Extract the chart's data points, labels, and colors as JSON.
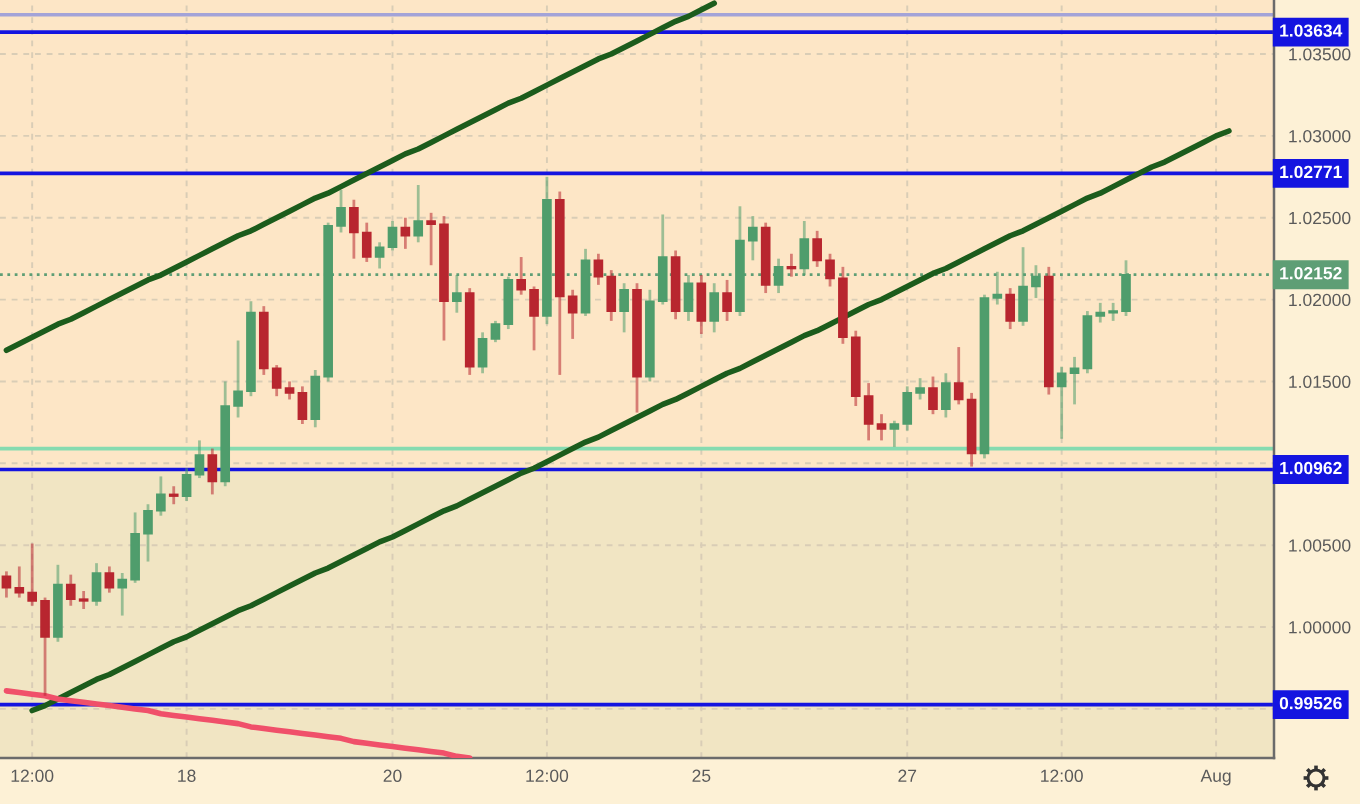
{
  "chart_data": {
    "type": "candlestick",
    "categories": [
      null,
      null,
      "12:00",
      null,
      null,
      null,
      null,
      null,
      null,
      null,
      null,
      null,
      null,
      null,
      "18",
      null,
      null,
      null,
      null,
      null,
      null,
      null,
      null,
      null,
      null,
      null,
      null,
      null,
      null,
      null,
      "20",
      null,
      null,
      null,
      null,
      null,
      null,
      null,
      null,
      null,
      null,
      null,
      "12:00",
      null,
      null,
      null,
      null,
      null,
      null,
      null,
      null,
      null,
      null,
      null,
      "25",
      null,
      null,
      null,
      null,
      null,
      null,
      null,
      null,
      null,
      null,
      null,
      null,
      null,
      null,
      null,
      "27",
      null,
      null,
      null,
      null,
      null,
      null,
      null,
      null,
      null,
      null,
      null,
      "12:00",
      null,
      null,
      null,
      null,
      null,
      null,
      null,
      null,
      null,
      null,
      null,
      "Aug",
      null,
      null,
      null,
      null
    ],
    "ohlc": [
      [
        1.0031,
        1.0034,
        1.0018,
        1.0024
      ],
      [
        1.0024,
        1.0037,
        1.0018,
        1.0021
      ],
      [
        1.0021,
        1.0051,
        1.0013,
        1.0016
      ],
      [
        1.0016,
        1.0018,
        0.9958,
        0.9994
      ],
      [
        0.9994,
        1.0038,
        0.9991,
        1.0026
      ],
      [
        1.0026,
        1.0032,
        1.0013,
        1.0017
      ],
      [
        1.0017,
        1.0022,
        1.0011,
        1.0016
      ],
      [
        1.0016,
        1.0039,
        1.0013,
        1.0033
      ],
      [
        1.0033,
        1.0037,
        1.0021,
        1.0024
      ],
      [
        1.0024,
        1.0033,
        1.0007,
        1.0029
      ],
      [
        1.0029,
        1.007,
        1.0027,
        1.0057
      ],
      [
        1.0057,
        1.0075,
        1.004,
        1.0071
      ],
      [
        1.0071,
        1.0092,
        1.0068,
        1.0081
      ],
      [
        1.0081,
        1.0086,
        1.0075,
        1.008
      ],
      [
        1.008,
        1.0097,
        1.0077,
        1.0093
      ],
      [
        1.0093,
        1.0114,
        1.0091,
        1.0105
      ],
      [
        1.0105,
        1.0109,
        1.0081,
        1.0089
      ],
      [
        1.0089,
        1.015,
        1.0086,
        1.0135
      ],
      [
        1.0135,
        1.0175,
        1.0128,
        1.0144
      ],
      [
        1.0144,
        1.0199,
        1.0141,
        1.0192
      ],
      [
        1.0192,
        1.0196,
        1.0154,
        1.0158
      ],
      [
        1.0158,
        1.016,
        1.0141,
        1.0146
      ],
      [
        1.0146,
        1.015,
        1.0139,
        1.0143
      ],
      [
        1.0143,
        1.0147,
        1.0124,
        1.0127
      ],
      [
        1.0127,
        1.0157,
        1.0122,
        1.0153
      ],
      [
        1.0153,
        1.0247,
        1.015,
        1.0245
      ],
      [
        1.0245,
        1.0267,
        1.0241,
        1.0256
      ],
      [
        1.0256,
        1.0261,
        1.0225,
        1.0241
      ],
      [
        1.0241,
        1.0247,
        1.0223,
        1.0226
      ],
      [
        1.0226,
        1.0235,
        1.0219,
        1.0232
      ],
      [
        1.0232,
        1.0248,
        1.023,
        1.0244
      ],
      [
        1.0244,
        1.025,
        1.0231,
        1.0239
      ],
      [
        1.0239,
        1.027,
        1.0235,
        1.0248
      ],
      [
        1.0248,
        1.0253,
        1.0221,
        1.0246
      ],
      [
        1.0246,
        1.0251,
        1.0175,
        1.0199
      ],
      [
        1.0199,
        1.0215,
        1.0192,
        1.0204
      ],
      [
        1.0204,
        1.0207,
        1.0154,
        1.0159
      ],
      [
        1.0159,
        1.018,
        1.0155,
        1.0176
      ],
      [
        1.0176,
        1.0187,
        1.0174,
        1.0185
      ],
      [
        1.0185,
        1.0214,
        1.0182,
        1.0212
      ],
      [
        1.0212,
        1.0226,
        1.0203,
        1.0206
      ],
      [
        1.0206,
        1.0208,
        1.0169,
        1.019
      ],
      [
        1.019,
        1.0275,
        1.0185,
        1.0261
      ],
      [
        1.0261,
        1.0266,
        1.0154,
        1.0202
      ],
      [
        1.0202,
        1.0206,
        1.0176,
        1.0192
      ],
      [
        1.0192,
        1.0231,
        1.019,
        1.0224
      ],
      [
        1.0224,
        1.0228,
        1.0209,
        1.0214
      ],
      [
        1.0214,
        1.0218,
        1.0187,
        1.0193
      ],
      [
        1.0193,
        1.021,
        1.018,
        1.0206
      ],
      [
        1.0206,
        1.021,
        1.0131,
        1.0153
      ],
      [
        1.0153,
        1.0206,
        1.015,
        1.0199
      ],
      [
        1.0199,
        1.0252,
        1.0197,
        1.0226
      ],
      [
        1.0226,
        1.023,
        1.0188,
        1.0193
      ],
      [
        1.0193,
        1.0215,
        1.0187,
        1.021
      ],
      [
        1.021,
        1.0215,
        1.0179,
        1.0187
      ],
      [
        1.0187,
        1.021,
        1.018,
        1.0204
      ],
      [
        1.0204,
        1.0212,
        1.0187,
        1.0193
      ],
      [
        1.0193,
        1.0257,
        1.019,
        1.0236
      ],
      [
        1.0236,
        1.0251,
        1.0224,
        1.0244
      ],
      [
        1.0244,
        1.0247,
        1.0204,
        1.0209
      ],
      [
        1.0209,
        1.0225,
        1.0204,
        1.022
      ],
      [
        1.022,
        1.0228,
        1.0214,
        1.0219
      ],
      [
        1.0219,
        1.0248,
        1.0215,
        1.0237
      ],
      [
        1.0237,
        1.0242,
        1.022,
        1.0224
      ],
      [
        1.0224,
        1.0228,
        1.0208,
        1.0213
      ],
      [
        1.0213,
        1.022,
        1.0173,
        1.0177
      ],
      [
        1.0177,
        1.0181,
        1.0135,
        1.0141
      ],
      [
        1.0141,
        1.0149,
        1.0114,
        1.0124
      ],
      [
        1.0124,
        1.013,
        1.0114,
        1.0121
      ],
      [
        1.0121,
        1.0126,
        1.011,
        1.0124
      ],
      [
        1.0124,
        1.0147,
        1.012,
        1.0143
      ],
      [
        1.0143,
        1.0152,
        1.0139,
        1.0146
      ],
      [
        1.0146,
        1.0153,
        1.013,
        1.0133
      ],
      [
        1.0133,
        1.0155,
        1.0128,
        1.0149
      ],
      [
        1.0149,
        1.0171,
        1.0136,
        1.0139
      ],
      [
        1.0139,
        1.0143,
        1.0098,
        1.0106
      ],
      [
        1.0106,
        1.0203,
        1.0103,
        1.0201
      ],
      [
        1.0201,
        1.0217,
        1.0197,
        1.0203
      ],
      [
        1.0203,
        1.0207,
        1.0182,
        1.0187
      ],
      [
        1.0187,
        1.0232,
        1.0184,
        1.0208
      ],
      [
        1.0208,
        1.0221,
        1.0201,
        1.0214
      ],
      [
        1.0214,
        1.022,
        1.0142,
        1.0147
      ],
      [
        1.0147,
        1.0159,
        1.0115,
        1.0155
      ],
      [
        1.0155,
        1.0165,
        1.0136,
        1.0158
      ],
      [
        1.0158,
        1.0193,
        1.0155,
        1.019
      ],
      [
        1.019,
        1.0198,
        1.0186,
        1.0192
      ],
      [
        1.0192,
        1.0198,
        1.0187,
        1.0193
      ],
      [
        1.0193,
        1.0224,
        1.019,
        1.02152
      ],
      null,
      null,
      null,
      null,
      null,
      null,
      null,
      null,
      null,
      null,
      null
    ],
    "colors": [
      "#b8262f",
      "#b8262f",
      "#b8262f",
      "#b8262f",
      "#4f9d6c",
      "#b8262f",
      "#b8262f",
      "#4f9d6c",
      "#b8262f",
      "#4f9d6c",
      "#4f9d6c",
      "#4f9d6c",
      "#4f9d6c",
      "#b8262f",
      "#4f9d6c",
      "#4f9d6c",
      "#b8262f",
      "#4f9d6c",
      "#4f9d6c",
      "#4f9d6c",
      "#b8262f",
      "#b8262f",
      "#b8262f",
      "#b8262f",
      "#4f9d6c",
      "#4f9d6c",
      "#4f9d6c",
      "#b8262f",
      "#b8262f",
      "#4f9d6c",
      "#4f9d6c",
      "#b8262f",
      "#4f9d6c",
      "#b8262f",
      "#b8262f",
      "#4f9d6c",
      "#b8262f",
      "#4f9d6c",
      "#4f9d6c",
      "#4f9d6c",
      "#b8262f",
      "#b8262f",
      "#4f9d6c",
      "#b8262f",
      "#b8262f",
      "#4f9d6c",
      "#b8262f",
      "#b8262f",
      "#4f9d6c",
      "#b8262f",
      "#4f9d6c",
      "#4f9d6c",
      "#b8262f",
      "#4f9d6c",
      "#b8262f",
      "#4f9d6c",
      "#b8262f",
      "#4f9d6c",
      "#4f9d6c",
      "#b8262f",
      "#4f9d6c",
      "#b8262f",
      "#4f9d6c",
      "#b8262f",
      "#b8262f",
      "#b8262f",
      "#b8262f",
      "#b8262f",
      "#b8262f",
      "#4f9d6c",
      "#4f9d6c",
      "#4f9d6c",
      "#b8262f",
      "#4f9d6c",
      "#b8262f",
      "#b8262f",
      "#4f9d6c",
      "#4f9d6c",
      "#b8262f",
      "#4f9d6c",
      "#4f9d6c",
      "#b8262f",
      "#4f9d6c",
      "#4f9d6c",
      "#4f9d6c",
      "#4f9d6c",
      "#4f9d6c",
      "#4f9d6c",
      null,
      null,
      null,
      null,
      null,
      null,
      null,
      null,
      null,
      null,
      null
    ],
    "series": [
      {
        "type": "line",
        "color": "#1c5c1c",
        "values": [
          1.0169,
          1.0173,
          1.0177,
          1.0181,
          1.0185,
          1.0188,
          1.0192,
          1.0196,
          1.02,
          1.0204,
          1.0208,
          1.0212,
          1.0215,
          1.0219,
          1.0223,
          1.0227,
          1.0231,
          1.0235,
          1.0239,
          1.0242,
          1.0246,
          1.025,
          1.0254,
          1.0258,
          1.0262,
          1.0265,
          1.0269,
          1.0273,
          1.0277,
          1.0281,
          1.0285,
          1.0289,
          1.0292,
          1.0296,
          1.03,
          1.0304,
          1.0308,
          1.0312,
          1.0316,
          1.032,
          1.0323,
          1.0327,
          1.0331,
          1.0335,
          1.0339,
          1.0343,
          1.0347,
          1.035,
          1.0354,
          1.0358,
          1.0362,
          1.0366,
          1.037,
          1.0373,
          1.0377,
          1.0381,
          null,
          null,
          null,
          null,
          null,
          null,
          null,
          null,
          null,
          null,
          null,
          null,
          null,
          null,
          null,
          null,
          null,
          null,
          null,
          null,
          null,
          null,
          null,
          null,
          null,
          null,
          null,
          null,
          null,
          null,
          null,
          null,
          null,
          null,
          null,
          null,
          null,
          null,
          null,
          null,
          null,
          null,
          null
        ]
      },
      {
        "type": "line",
        "color": "#1c5c1c",
        "values": [
          null,
          null,
          0.9949,
          0.9952,
          0.9956,
          0.996,
          0.9964,
          0.9968,
          0.9971,
          0.9975,
          0.9979,
          0.9983,
          0.9987,
          0.9991,
          0.9994,
          0.9998,
          1.0002,
          1.0006,
          1.001,
          1.0013,
          1.0017,
          1.0021,
          1.0025,
          1.0029,
          1.0033,
          1.0036,
          1.004,
          1.0044,
          1.0048,
          1.0052,
          1.0055,
          1.0059,
          1.0063,
          1.0067,
          1.0071,
          1.0074,
          1.0078,
          1.0082,
          1.0086,
          1.009,
          1.0094,
          1.0097,
          1.0101,
          1.0105,
          1.0109,
          1.0113,
          1.0116,
          1.012,
          1.0124,
          1.0128,
          1.0132,
          1.0136,
          1.0139,
          1.0143,
          1.0147,
          1.0151,
          1.0155,
          1.0158,
          1.0162,
          1.0166,
          1.017,
          1.0174,
          1.0178,
          1.0181,
          1.0185,
          1.0189,
          1.0193,
          1.0197,
          1.02,
          1.0204,
          1.0208,
          1.0212,
          1.0216,
          1.0219,
          1.0223,
          1.0227,
          1.0231,
          1.0235,
          1.0239,
          1.0242,
          1.0246,
          1.025,
          1.0254,
          1.0258,
          1.0262,
          1.0265,
          1.0269,
          1.0273,
          1.0277,
          1.0281,
          1.0284,
          1.0288,
          1.0292,
          1.0296,
          1.03,
          1.0303,
          null,
          null,
          null
        ]
      },
      {
        "type": "line",
        "color": "#f0506a",
        "values": [
          0.9961,
          0.996,
          0.9959,
          0.9958,
          0.9956,
          0.9955,
          0.9954,
          0.9953,
          0.9952,
          0.9951,
          0.995,
          0.9949,
          0.9947,
          0.9946,
          0.9945,
          0.9944,
          0.9943,
          0.9942,
          0.9941,
          0.9939,
          0.9938,
          0.9937,
          0.9936,
          0.9935,
          0.9934,
          0.9933,
          0.9932,
          0.993,
          0.9929,
          0.9928,
          0.9927,
          0.9926,
          0.9925,
          0.9924,
          0.9923,
          0.9921,
          0.992,
          null,
          null,
          null,
          null,
          null,
          null,
          null,
          null,
          null,
          null,
          null,
          null,
          null,
          null,
          null,
          null,
          null,
          null,
          null,
          null,
          null,
          null,
          null,
          null,
          null,
          null,
          null,
          null,
          null,
          null,
          null,
          null,
          null,
          null,
          null,
          null,
          null,
          null,
          null,
          null,
          null,
          null,
          null,
          null,
          null,
          null,
          null,
          null,
          null,
          null,
          null,
          null,
          null,
          null,
          null,
          null,
          null,
          null,
          null,
          null,
          null,
          null
        ]
      }
    ],
    "ylim": [
      0.992,
      1.0383
    ],
    "yticks": [
      {
        "value": 0.995,
        "label": null
      },
      {
        "value": 1.0,
        "label": "1.00000"
      },
      {
        "value": 1.005,
        "label": "1.00500"
      },
      {
        "value": 1.01,
        "label": null
      },
      {
        "value": 1.015,
        "label": "1.01500"
      },
      {
        "value": 1.02,
        "label": "1.02000"
      },
      {
        "value": 1.025,
        "label": "1.02500"
      },
      {
        "value": 1.03,
        "label": "1.03000"
      },
      {
        "value": 1.035,
        "label": "1.03500"
      }
    ],
    "grid": true,
    "ref_lines": [
      {
        "axis": "y",
        "value": 1.0374,
        "color": "#a3a3d8"
      },
      {
        "axis": "y",
        "value": 1.03634,
        "label": "1.03634",
        "color": "#1414e0"
      },
      {
        "axis": "y",
        "value": 1.02771,
        "label": "1.02771",
        "color": "#1414e0"
      },
      {
        "axis": "y",
        "value": 1.02152,
        "label": "1.02152",
        "color": "#5e9e75",
        "line_style": "dotted"
      },
      {
        "axis": "y",
        "value": 1.0109,
        "color": "#86dbb0"
      },
      {
        "axis": "y",
        "value": 1.00962,
        "label": "1.00962",
        "color": "#1414e0"
      },
      {
        "axis": "y",
        "value": 0.99526,
        "label": "0.99526",
        "color": "#1414e0"
      }
    ],
    "bands": [
      {
        "axis": "y",
        "from": 1.00962,
        "to": 1.0383,
        "color": "#fde6c6"
      },
      {
        "axis": "y",
        "from": 0.992,
        "to": 1.00962,
        "color": "#f1e5c3"
      }
    ]
  }
}
